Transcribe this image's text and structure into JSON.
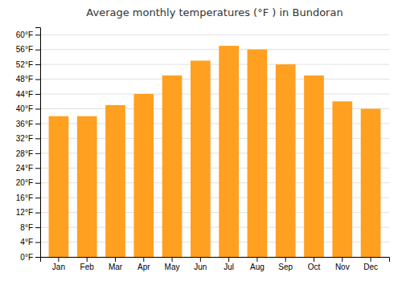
{
  "chart_data": {
    "type": "bar",
    "title": "Average monthly temperatures (°F ) in Bundoran",
    "categories": [
      "Jan",
      "Feb",
      "Mar",
      "Apr",
      "May",
      "Jun",
      "Jul",
      "Aug",
      "Sep",
      "Oct",
      "Nov",
      "Dec"
    ],
    "values": [
      38,
      38,
      41,
      44,
      49,
      53,
      57,
      56,
      52,
      49,
      42,
      40
    ],
    "color": "#FFA020",
    "ylim": [
      0,
      62
    ],
    "yticks": [
      {
        "value": 0,
        "label": "0°F"
      },
      {
        "value": 4,
        "label": "4°F"
      },
      {
        "value": 8,
        "label": "8°F"
      },
      {
        "value": 12,
        "label": "12°F"
      },
      {
        "value": 16,
        "label": "16°F"
      },
      {
        "value": 20,
        "label": "20°F"
      },
      {
        "value": 24,
        "label": "24°F"
      },
      {
        "value": 28,
        "label": "28°F"
      },
      {
        "value": 32,
        "label": "32°F"
      },
      {
        "value": 36,
        "label": "36°F"
      },
      {
        "value": 40,
        "label": "40°F"
      },
      {
        "value": 44,
        "label": "44°F"
      },
      {
        "value": 48,
        "label": "48°F"
      },
      {
        "value": 52,
        "label": "52°F"
      },
      {
        "value": 56,
        "label": "56°F"
      },
      {
        "value": 60,
        "label": "60°F"
      }
    ],
    "grid": true
  }
}
